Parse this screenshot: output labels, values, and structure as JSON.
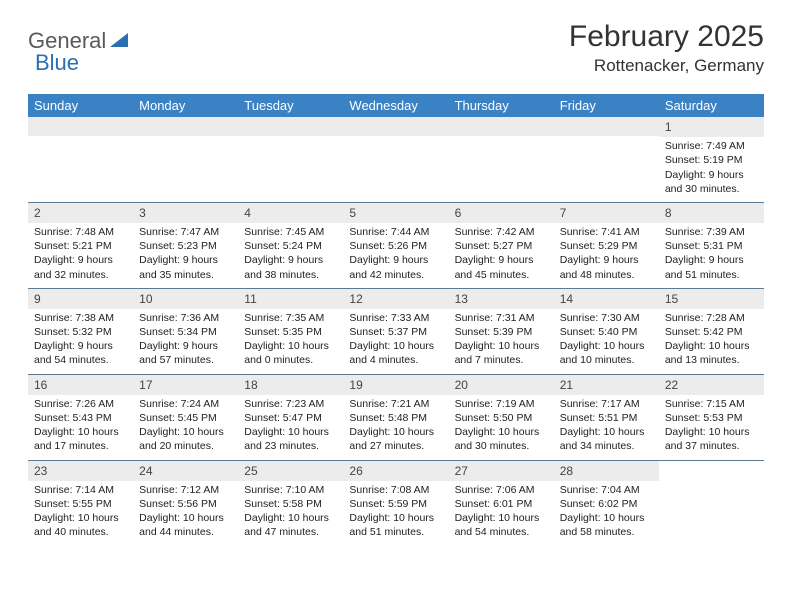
{
  "logo": {
    "text_gray": "General",
    "text_blue": "Blue"
  },
  "header": {
    "title": "February 2025",
    "location": "Rottenacker, Germany"
  },
  "colors": {
    "header_bar": "#3b82c4",
    "row_divider": "#5a7a95",
    "daynum_bg": "#ececec",
    "logo_blue": "#2c6fb0",
    "text": "#333333"
  },
  "fonts": {
    "title_size": 30,
    "location_size": 17,
    "daynames_size": 13,
    "daynum_size": 12,
    "body_size": 10.5
  },
  "daynames": [
    "Sunday",
    "Monday",
    "Tuesday",
    "Wednesday",
    "Thursday",
    "Friday",
    "Saturday"
  ],
  "weeks": [
    [
      {
        "empty": true
      },
      {
        "empty": true
      },
      {
        "empty": true
      },
      {
        "empty": true
      },
      {
        "empty": true
      },
      {
        "empty": true
      },
      {
        "day": "1",
        "sunrise": "Sunrise: 7:49 AM",
        "sunset": "Sunset: 5:19 PM",
        "daylight1": "Daylight: 9 hours",
        "daylight2": "and 30 minutes."
      }
    ],
    [
      {
        "day": "2",
        "sunrise": "Sunrise: 7:48 AM",
        "sunset": "Sunset: 5:21 PM",
        "daylight1": "Daylight: 9 hours",
        "daylight2": "and 32 minutes."
      },
      {
        "day": "3",
        "sunrise": "Sunrise: 7:47 AM",
        "sunset": "Sunset: 5:23 PM",
        "daylight1": "Daylight: 9 hours",
        "daylight2": "and 35 minutes."
      },
      {
        "day": "4",
        "sunrise": "Sunrise: 7:45 AM",
        "sunset": "Sunset: 5:24 PM",
        "daylight1": "Daylight: 9 hours",
        "daylight2": "and 38 minutes."
      },
      {
        "day": "5",
        "sunrise": "Sunrise: 7:44 AM",
        "sunset": "Sunset: 5:26 PM",
        "daylight1": "Daylight: 9 hours",
        "daylight2": "and 42 minutes."
      },
      {
        "day": "6",
        "sunrise": "Sunrise: 7:42 AM",
        "sunset": "Sunset: 5:27 PM",
        "daylight1": "Daylight: 9 hours",
        "daylight2": "and 45 minutes."
      },
      {
        "day": "7",
        "sunrise": "Sunrise: 7:41 AM",
        "sunset": "Sunset: 5:29 PM",
        "daylight1": "Daylight: 9 hours",
        "daylight2": "and 48 minutes."
      },
      {
        "day": "8",
        "sunrise": "Sunrise: 7:39 AM",
        "sunset": "Sunset: 5:31 PM",
        "daylight1": "Daylight: 9 hours",
        "daylight2": "and 51 minutes."
      }
    ],
    [
      {
        "day": "9",
        "sunrise": "Sunrise: 7:38 AM",
        "sunset": "Sunset: 5:32 PM",
        "daylight1": "Daylight: 9 hours",
        "daylight2": "and 54 minutes."
      },
      {
        "day": "10",
        "sunrise": "Sunrise: 7:36 AM",
        "sunset": "Sunset: 5:34 PM",
        "daylight1": "Daylight: 9 hours",
        "daylight2": "and 57 minutes."
      },
      {
        "day": "11",
        "sunrise": "Sunrise: 7:35 AM",
        "sunset": "Sunset: 5:35 PM",
        "daylight1": "Daylight: 10 hours",
        "daylight2": "and 0 minutes."
      },
      {
        "day": "12",
        "sunrise": "Sunrise: 7:33 AM",
        "sunset": "Sunset: 5:37 PM",
        "daylight1": "Daylight: 10 hours",
        "daylight2": "and 4 minutes."
      },
      {
        "day": "13",
        "sunrise": "Sunrise: 7:31 AM",
        "sunset": "Sunset: 5:39 PM",
        "daylight1": "Daylight: 10 hours",
        "daylight2": "and 7 minutes."
      },
      {
        "day": "14",
        "sunrise": "Sunrise: 7:30 AM",
        "sunset": "Sunset: 5:40 PM",
        "daylight1": "Daylight: 10 hours",
        "daylight2": "and 10 minutes."
      },
      {
        "day": "15",
        "sunrise": "Sunrise: 7:28 AM",
        "sunset": "Sunset: 5:42 PM",
        "daylight1": "Daylight: 10 hours",
        "daylight2": "and 13 minutes."
      }
    ],
    [
      {
        "day": "16",
        "sunrise": "Sunrise: 7:26 AM",
        "sunset": "Sunset: 5:43 PM",
        "daylight1": "Daylight: 10 hours",
        "daylight2": "and 17 minutes."
      },
      {
        "day": "17",
        "sunrise": "Sunrise: 7:24 AM",
        "sunset": "Sunset: 5:45 PM",
        "daylight1": "Daylight: 10 hours",
        "daylight2": "and 20 minutes."
      },
      {
        "day": "18",
        "sunrise": "Sunrise: 7:23 AM",
        "sunset": "Sunset: 5:47 PM",
        "daylight1": "Daylight: 10 hours",
        "daylight2": "and 23 minutes."
      },
      {
        "day": "19",
        "sunrise": "Sunrise: 7:21 AM",
        "sunset": "Sunset: 5:48 PM",
        "daylight1": "Daylight: 10 hours",
        "daylight2": "and 27 minutes."
      },
      {
        "day": "20",
        "sunrise": "Sunrise: 7:19 AM",
        "sunset": "Sunset: 5:50 PM",
        "daylight1": "Daylight: 10 hours",
        "daylight2": "and 30 minutes."
      },
      {
        "day": "21",
        "sunrise": "Sunrise: 7:17 AM",
        "sunset": "Sunset: 5:51 PM",
        "daylight1": "Daylight: 10 hours",
        "daylight2": "and 34 minutes."
      },
      {
        "day": "22",
        "sunrise": "Sunrise: 7:15 AM",
        "sunset": "Sunset: 5:53 PM",
        "daylight1": "Daylight: 10 hours",
        "daylight2": "and 37 minutes."
      }
    ],
    [
      {
        "day": "23",
        "sunrise": "Sunrise: 7:14 AM",
        "sunset": "Sunset: 5:55 PM",
        "daylight1": "Daylight: 10 hours",
        "daylight2": "and 40 minutes."
      },
      {
        "day": "24",
        "sunrise": "Sunrise: 7:12 AM",
        "sunset": "Sunset: 5:56 PM",
        "daylight1": "Daylight: 10 hours",
        "daylight2": "and 44 minutes."
      },
      {
        "day": "25",
        "sunrise": "Sunrise: 7:10 AM",
        "sunset": "Sunset: 5:58 PM",
        "daylight1": "Daylight: 10 hours",
        "daylight2": "and 47 minutes."
      },
      {
        "day": "26",
        "sunrise": "Sunrise: 7:08 AM",
        "sunset": "Sunset: 5:59 PM",
        "daylight1": "Daylight: 10 hours",
        "daylight2": "and 51 minutes."
      },
      {
        "day": "27",
        "sunrise": "Sunrise: 7:06 AM",
        "sunset": "Sunset: 6:01 PM",
        "daylight1": "Daylight: 10 hours",
        "daylight2": "and 54 minutes."
      },
      {
        "day": "28",
        "sunrise": "Sunrise: 7:04 AM",
        "sunset": "Sunset: 6:02 PM",
        "daylight1": "Daylight: 10 hours",
        "daylight2": "and 58 minutes."
      },
      {
        "empty": true,
        "noBar": true
      }
    ]
  ]
}
